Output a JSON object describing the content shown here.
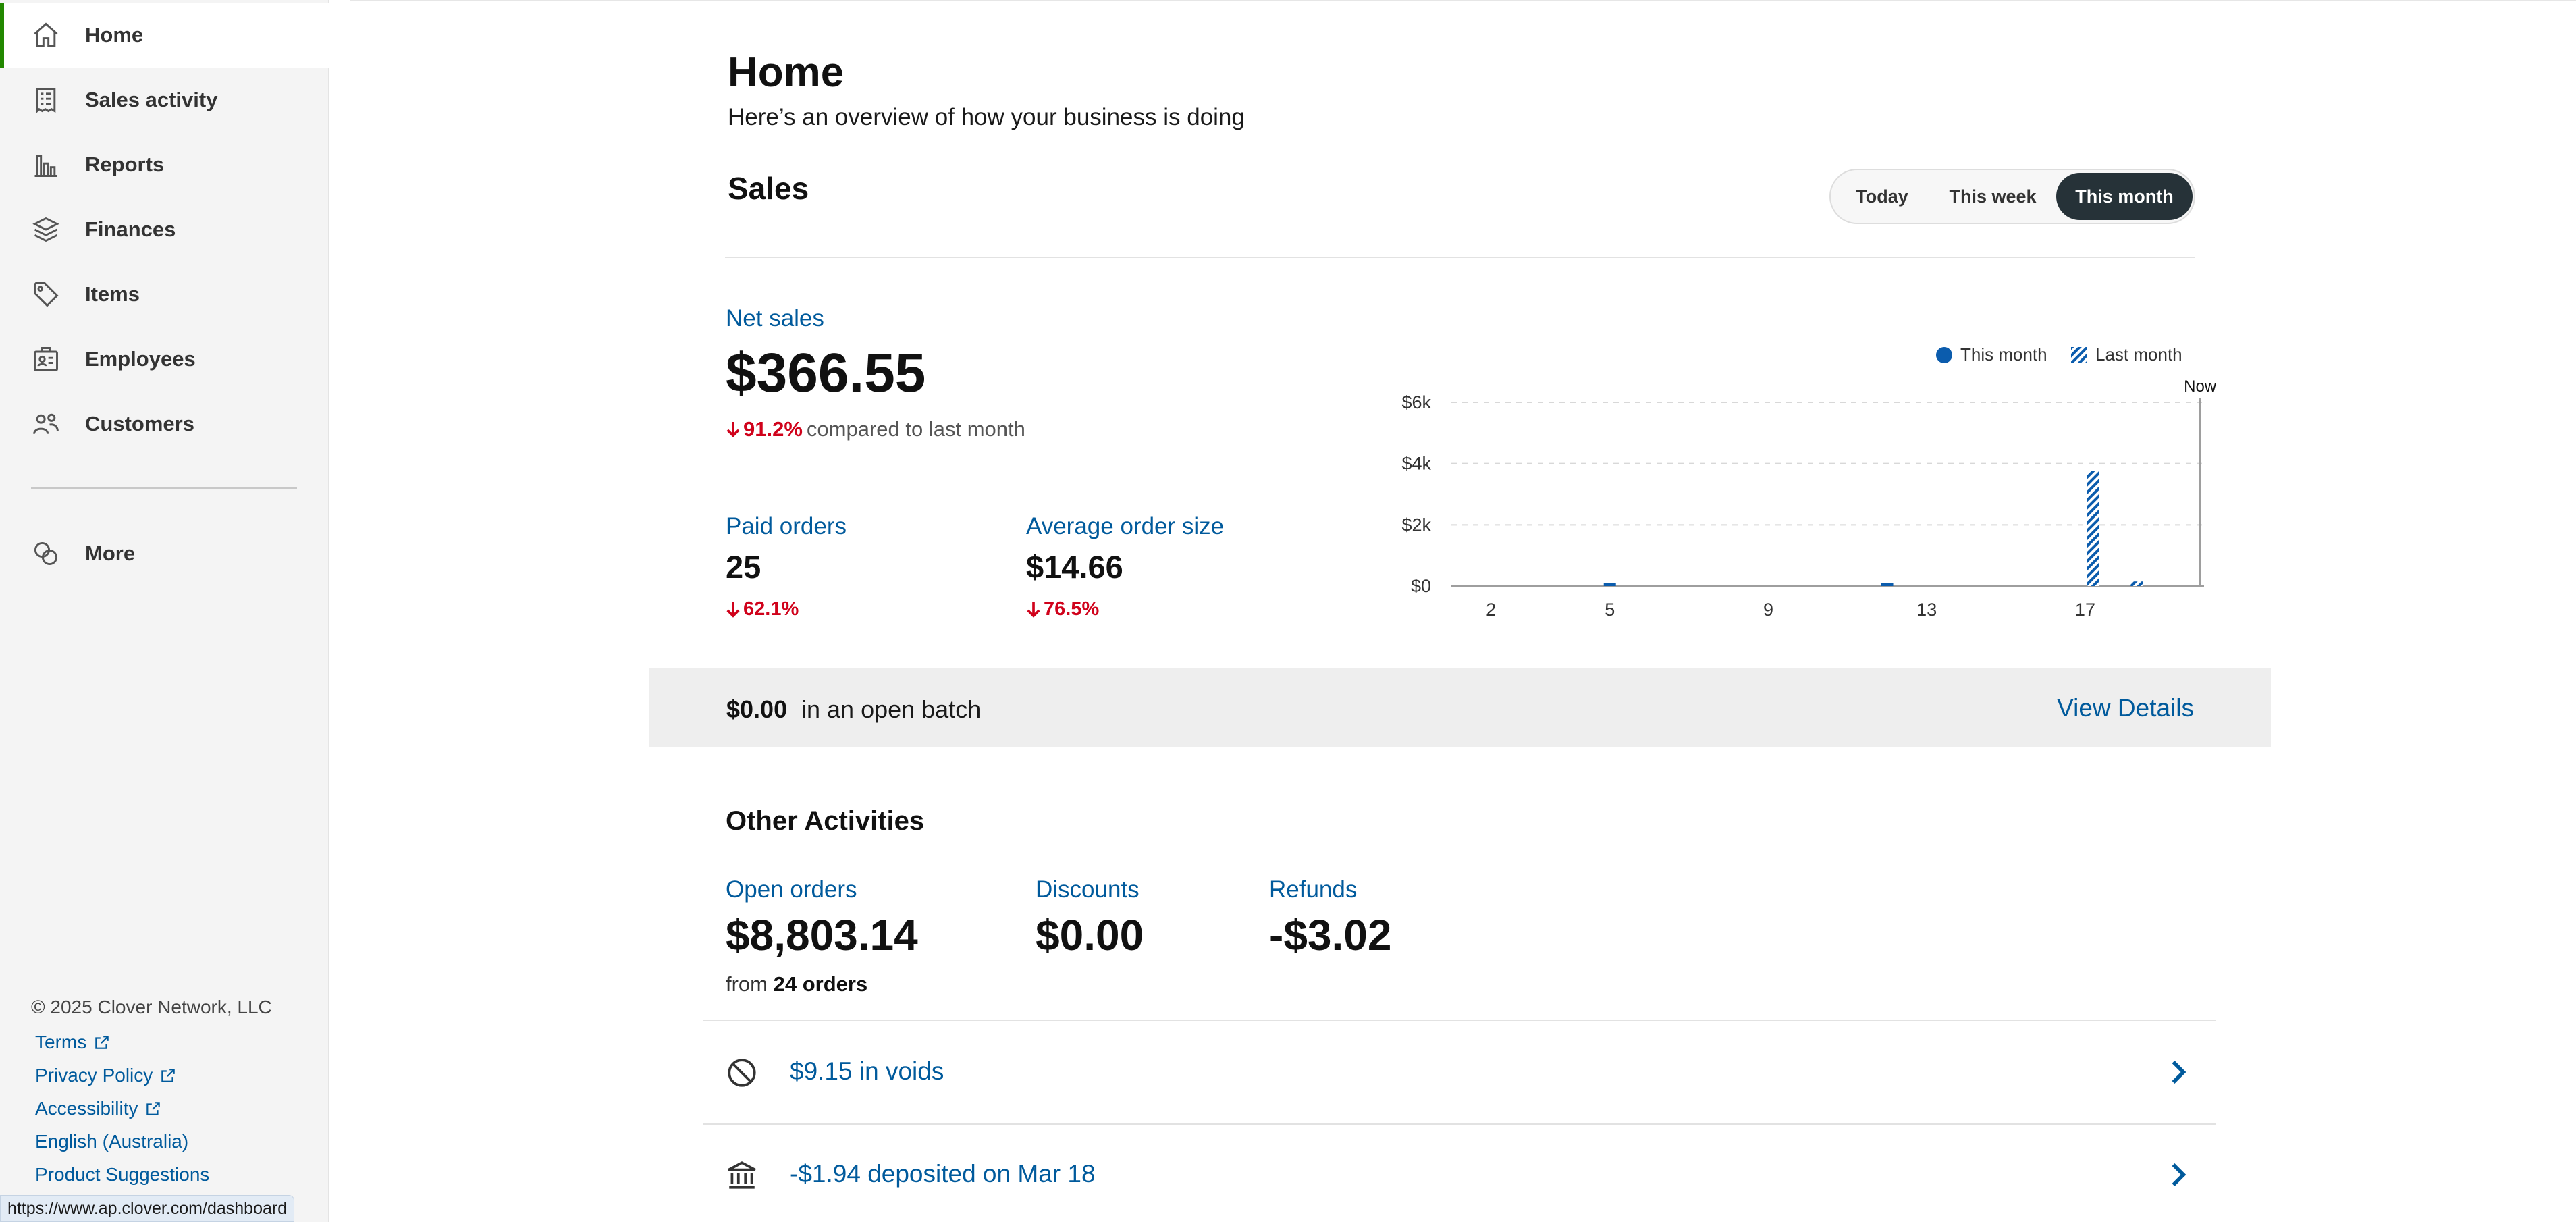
{
  "sidebar": {
    "items": [
      {
        "label": "Home",
        "icon": "home-icon",
        "active": true
      },
      {
        "label": "Sales activity",
        "icon": "receipt-icon"
      },
      {
        "label": "Reports",
        "icon": "bar-chart-icon"
      },
      {
        "label": "Finances",
        "icon": "layers-icon"
      },
      {
        "label": "Items",
        "icon": "tag-icon"
      },
      {
        "label": "Employees",
        "icon": "id-card-icon"
      },
      {
        "label": "Customers",
        "icon": "people-icon"
      },
      {
        "label": "More",
        "icon": "more-apps-icon"
      }
    ],
    "footer": {
      "copyright": "© 2025 Clover Network, LLC",
      "links": {
        "terms": "Terms",
        "privacy": "Privacy Policy",
        "accessibility": "Accessibility",
        "language": "English (Australia)",
        "suggestions": "Product Suggestions"
      }
    },
    "status_url": "https://www.ap.clover.com/dashboard"
  },
  "header": {
    "title": "Home",
    "subtitle": "Here’s an overview of how your business is doing"
  },
  "sales": {
    "title": "Sales",
    "range_options": [
      "Today",
      "This week",
      "This month"
    ],
    "selected_range": "This month",
    "net_sales": {
      "label": "Net sales",
      "value": "$366.55",
      "change": "91.2%",
      "comparison": "compared to last month"
    },
    "paid_orders": {
      "label": "Paid orders",
      "value": "25",
      "change": "62.1%"
    },
    "average_order": {
      "label": "Average order size",
      "value": "$14.66",
      "change": "76.5%"
    }
  },
  "chart_data": {
    "type": "bar",
    "legend": [
      "This month",
      "Last month"
    ],
    "legend_position": "top-right",
    "x_ticks": [
      "2",
      "5",
      "9",
      "13",
      "17"
    ],
    "x_domain": [
      1,
      20
    ],
    "y_ticks": [
      "$0",
      "$2k",
      "$4k",
      "$6k"
    ],
    "ylim": [
      0,
      6000
    ],
    "now_label": "Now",
    "now_x": 19.9,
    "grid": true,
    "series": [
      {
        "name": "This month",
        "color": "#0b5cad",
        "pattern": "solid",
        "points": [
          {
            "x": 5,
            "y": 100
          },
          {
            "x": 12,
            "y": 60
          }
        ]
      },
      {
        "name": "Last month",
        "color": "#0b5cad",
        "pattern": "hatched",
        "points": [
          {
            "x": 17.2,
            "y": 3750
          },
          {
            "x": 18.3,
            "y": 150
          }
        ]
      }
    ]
  },
  "batch": {
    "amount": "$0.00",
    "text": "in an open batch",
    "action": "View Details"
  },
  "other_activities": {
    "title": "Other Activities",
    "open_orders": {
      "label": "Open orders",
      "value": "$8,803.14",
      "from_prefix": "from",
      "from_count": "24 orders"
    },
    "discounts": {
      "label": "Discounts",
      "value": "$0.00"
    },
    "refunds": {
      "label": "Refunds",
      "value": "-$3.02"
    },
    "rows": [
      {
        "text": "$9.15 in voids",
        "icon": "void-circle-icon"
      },
      {
        "text": "-$1.94 deposited on Mar 18",
        "icon": "bank-icon"
      }
    ]
  }
}
